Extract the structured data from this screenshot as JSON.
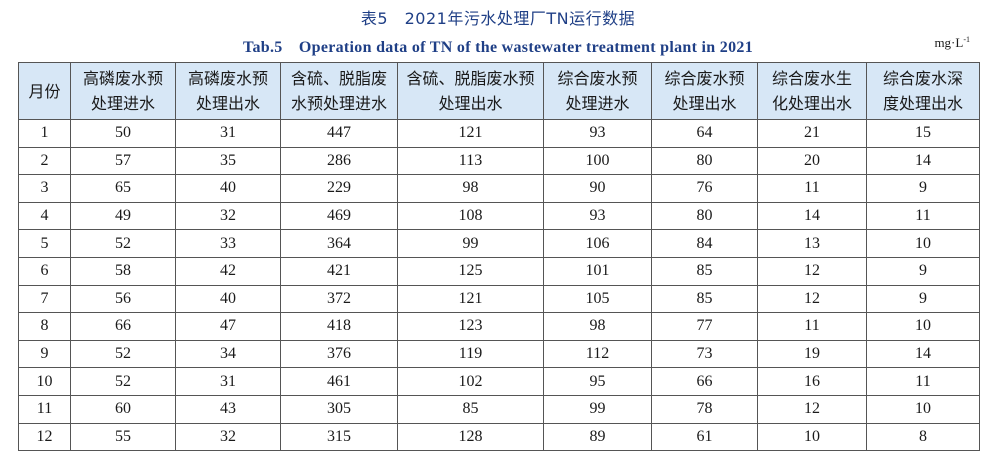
{
  "caption": {
    "title_cn": "表5　2021年污水处理厂TN运行数据",
    "title_en": "Tab.5　Operation data of TN of the wastewater treatment plant in 2021",
    "unit_main": "mg·L",
    "unit_exp": "-1"
  },
  "table": {
    "headers": [
      {
        "line1": "月份",
        "line2": ""
      },
      {
        "line1": "高磷废水预",
        "line2": "处理进水"
      },
      {
        "line1": "高磷废水预",
        "line2": "处理出水"
      },
      {
        "line1": "含硫、脱脂废",
        "line2": "水预处理进水"
      },
      {
        "line1": "含硫、脱脂废水预",
        "line2": "处理出水"
      },
      {
        "line1": "综合废水预",
        "line2": "处理进水"
      },
      {
        "line1": "综合废水预",
        "line2": "处理出水"
      },
      {
        "line1": "综合废水生",
        "line2": "化处理出水"
      },
      {
        "line1": "综合废水深",
        "line2": "度处理出水"
      }
    ],
    "rows": [
      [
        "1",
        "50",
        "31",
        "447",
        "121",
        "93",
        "64",
        "21",
        "15"
      ],
      [
        "2",
        "57",
        "35",
        "286",
        "113",
        "100",
        "80",
        "20",
        "14"
      ],
      [
        "3",
        "65",
        "40",
        "229",
        "98",
        "90",
        "76",
        "11",
        "9"
      ],
      [
        "4",
        "49",
        "32",
        "469",
        "108",
        "93",
        "80",
        "14",
        "11"
      ],
      [
        "5",
        "52",
        "33",
        "364",
        "99",
        "106",
        "84",
        "13",
        "10"
      ],
      [
        "6",
        "58",
        "42",
        "421",
        "125",
        "101",
        "85",
        "12",
        "9"
      ],
      [
        "7",
        "56",
        "40",
        "372",
        "121",
        "105",
        "85",
        "12",
        "9"
      ],
      [
        "8",
        "66",
        "47",
        "418",
        "123",
        "98",
        "77",
        "11",
        "10"
      ],
      [
        "9",
        "52",
        "34",
        "376",
        "119",
        "112",
        "73",
        "19",
        "14"
      ],
      [
        "10",
        "52",
        "31",
        "461",
        "102",
        "95",
        "66",
        "16",
        "11"
      ],
      [
        "11",
        "60",
        "43",
        "305",
        "85",
        "99",
        "78",
        "12",
        "10"
      ],
      [
        "12",
        "55",
        "32",
        "315",
        "128",
        "89",
        "61",
        "10",
        "8"
      ]
    ]
  }
}
